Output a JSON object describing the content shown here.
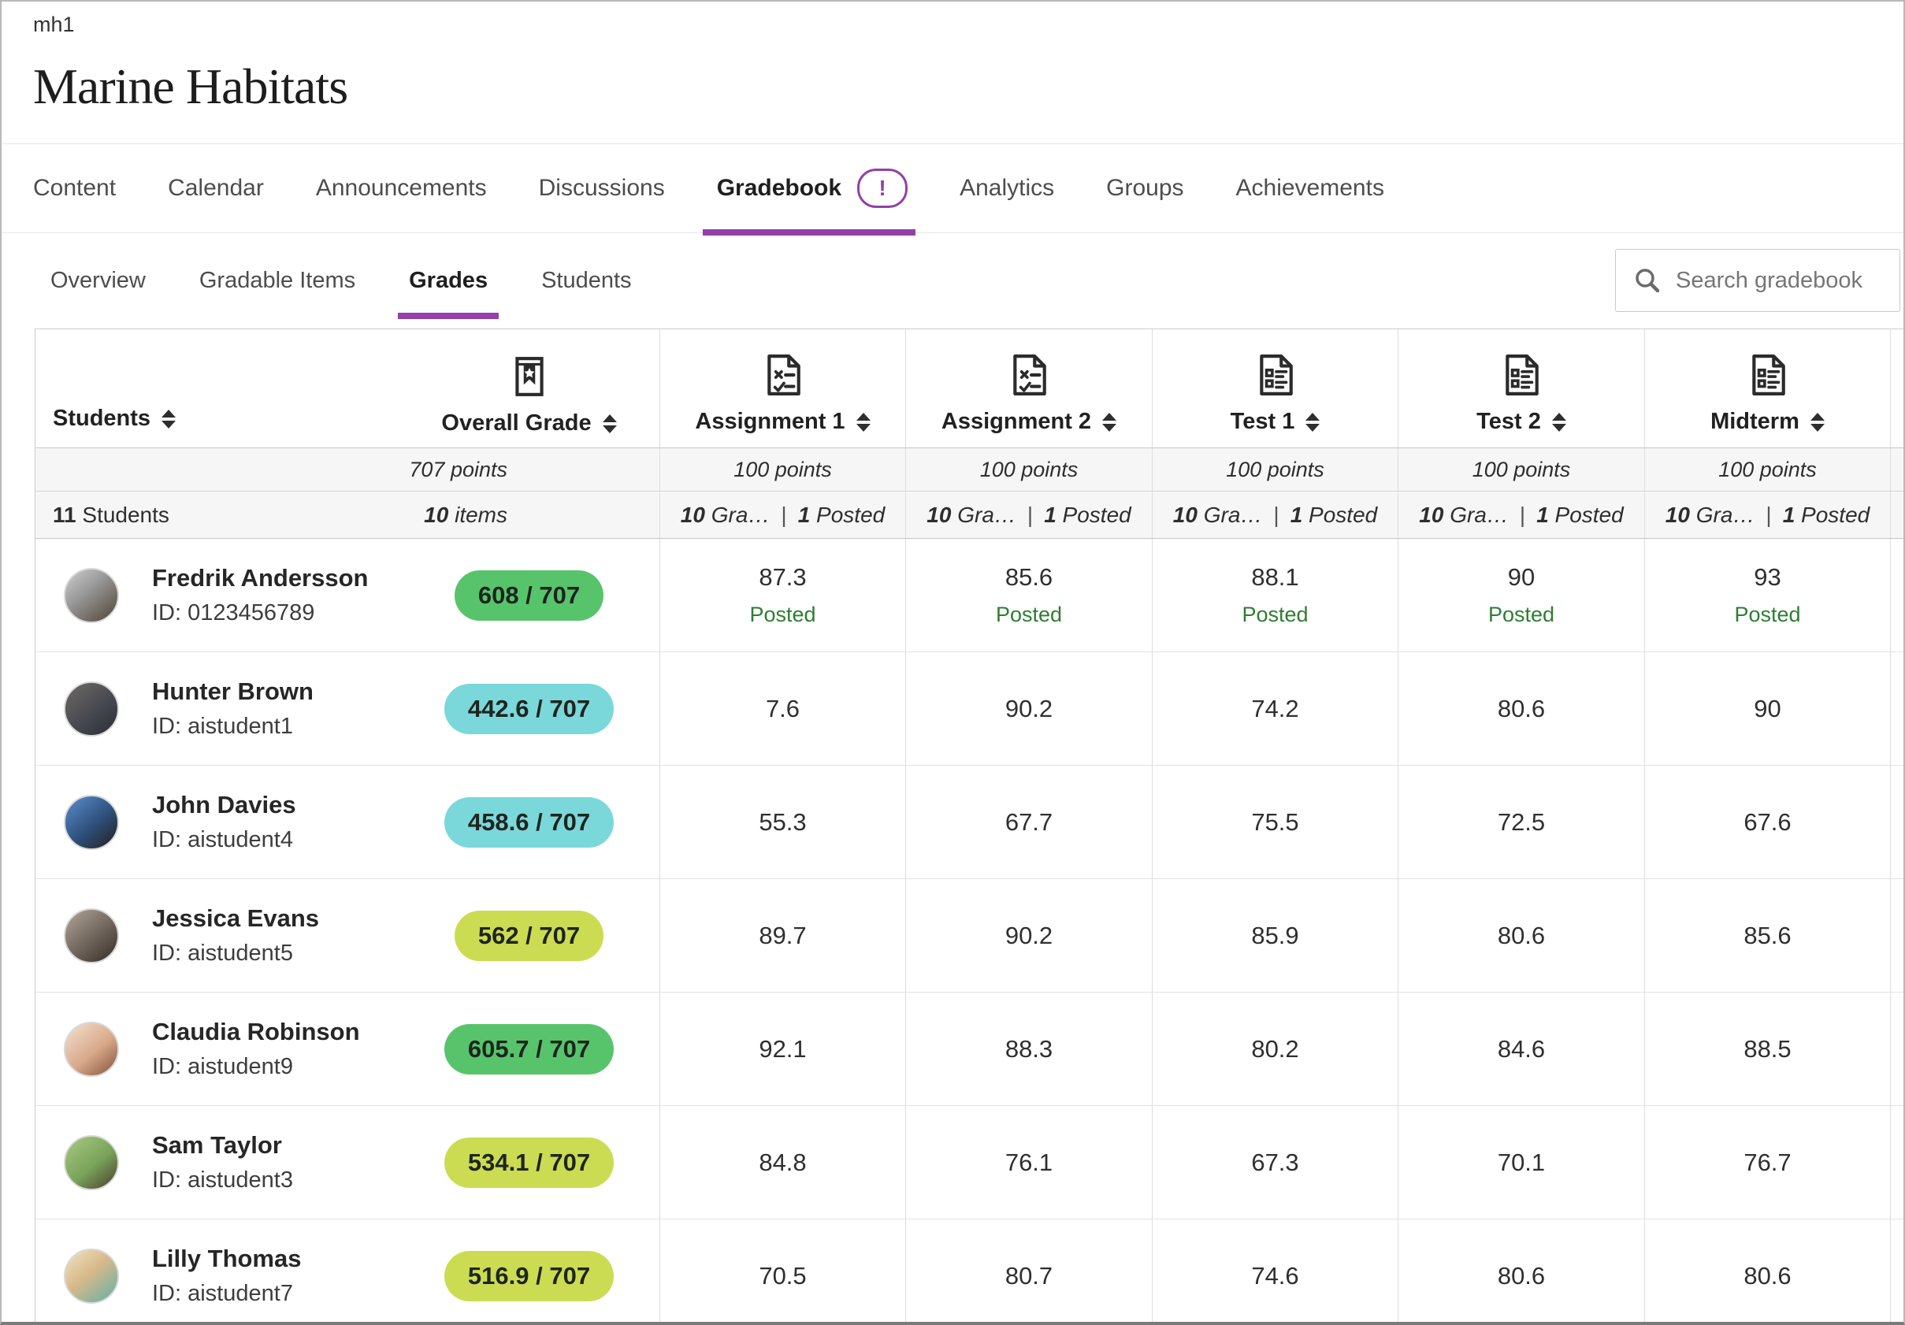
{
  "header": {
    "course_code": "mh1",
    "course_title": "Marine Habitats"
  },
  "primary_nav": {
    "items": [
      {
        "label": "Content"
      },
      {
        "label": "Calendar"
      },
      {
        "label": "Announcements"
      },
      {
        "label": "Discussions"
      },
      {
        "label": "Gradebook",
        "active": true,
        "badge": "!"
      },
      {
        "label": "Analytics"
      },
      {
        "label": "Groups"
      },
      {
        "label": "Achievements"
      }
    ]
  },
  "secondary_nav": {
    "items": [
      {
        "label": "Overview"
      },
      {
        "label": "Gradable Items"
      },
      {
        "label": "Grades",
        "active": true
      },
      {
        "label": "Students"
      }
    ]
  },
  "search": {
    "placeholder": "Search gradebook"
  },
  "table": {
    "students_header": "Students",
    "overall_header": "Overall Grade",
    "overall_icon": "overall-grade-icon",
    "overall_points": "707 points",
    "students_count_bold": "11",
    "students_count_label": " Students",
    "items_count_bold": "10",
    "items_count_label": " items",
    "count_separator": "|",
    "posted_label": "Posted",
    "columns": [
      {
        "label": "Assignment 1",
        "icon": "assignment-icon",
        "points": "100 points",
        "graded_bold": "10",
        "graded_label": " Gra…",
        "posted_bold": "1",
        "posted_label": " Posted"
      },
      {
        "label": "Assignment 2",
        "icon": "assignment-icon",
        "points": "100 points",
        "graded_bold": "10",
        "graded_label": " Gra…",
        "posted_bold": "1",
        "posted_label": " Posted"
      },
      {
        "label": "Test 1",
        "icon": "test-icon",
        "points": "100 points",
        "graded_bold": "10",
        "graded_label": " Gra…",
        "posted_bold": "1",
        "posted_label": " Posted"
      },
      {
        "label": "Test 2",
        "icon": "test-icon",
        "points": "100 points",
        "graded_bold": "10",
        "graded_label": " Gra…",
        "posted_bold": "1",
        "posted_label": " Posted"
      },
      {
        "label": "Midterm",
        "icon": "test-icon",
        "points": "100 points",
        "graded_bold": "10",
        "graded_label": " Gra…",
        "posted_bold": "1",
        "posted_label": " Posted"
      }
    ],
    "rows": [
      {
        "name": "Fredrik Andersson",
        "id": "ID: 0123456789",
        "overall": "608 / 707",
        "level": "green",
        "scores": [
          "87.3",
          "85.6",
          "88.1",
          "90",
          "93"
        ],
        "posted": true
      },
      {
        "name": "Hunter Brown",
        "id": "ID: aistudent1",
        "overall": "442.6 / 707",
        "level": "teal",
        "scores": [
          "7.6",
          "90.2",
          "74.2",
          "80.6",
          "90"
        ],
        "posted": false
      },
      {
        "name": "John Davies",
        "id": "ID: aistudent4",
        "overall": "458.6 / 707",
        "level": "teal",
        "scores": [
          "55.3",
          "67.7",
          "75.5",
          "72.5",
          "67.6"
        ],
        "posted": false
      },
      {
        "name": "Jessica Evans",
        "id": "ID: aistudent5",
        "overall": "562 / 707",
        "level": "yellow",
        "scores": [
          "89.7",
          "90.2",
          "85.9",
          "80.6",
          "85.6"
        ],
        "posted": false
      },
      {
        "name": "Claudia Robinson",
        "id": "ID: aistudent9",
        "overall": "605.7 / 707",
        "level": "green",
        "scores": [
          "92.1",
          "88.3",
          "80.2",
          "84.6",
          "88.5"
        ],
        "posted": false
      },
      {
        "name": "Sam Taylor",
        "id": "ID: aistudent3",
        "overall": "534.1 / 707",
        "level": "yellow",
        "scores": [
          "84.8",
          "76.1",
          "67.3",
          "70.1",
          "76.7"
        ],
        "posted": false
      },
      {
        "name": "Lilly Thomas",
        "id": "ID: aistudent7",
        "overall": "516.9 / 707",
        "level": "yellow",
        "scores": [
          "70.5",
          "80.7",
          "74.6",
          "80.6",
          "80.6"
        ],
        "posted": false
      }
    ]
  },
  "colors": {
    "accent_purple": "#9340a8",
    "posted_green": "#2e7d32",
    "pill_green": "#57c46c",
    "pill_teal": "#7ad8da",
    "pill_yellow": "#cbdc52"
  }
}
